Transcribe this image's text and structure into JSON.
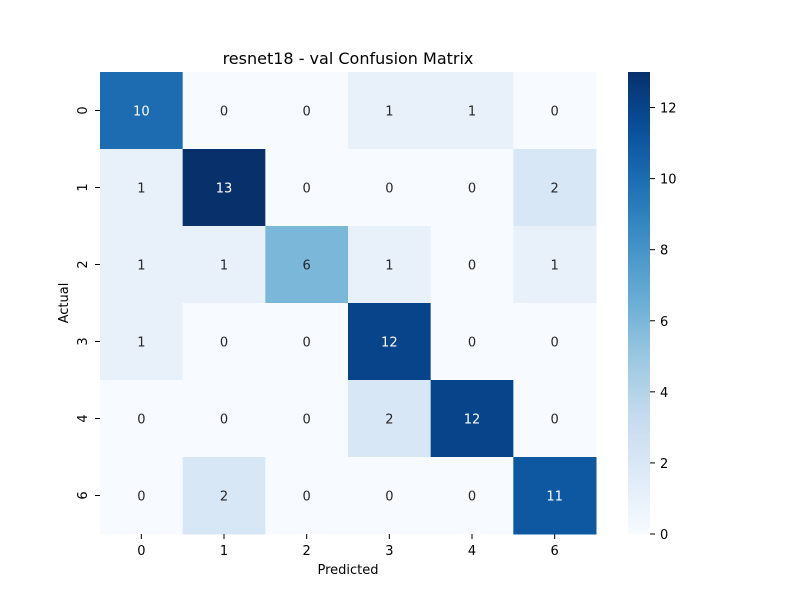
{
  "chart_data": {
    "type": "heatmap",
    "title": "resnet18 - val Confusion Matrix",
    "xlabel": "Predicted",
    "ylabel": "Actual",
    "x_categories": [
      "0",
      "1",
      "2",
      "3",
      "4",
      "6"
    ],
    "y_categories": [
      "0",
      "1",
      "2",
      "3",
      "4",
      "6"
    ],
    "values": [
      [
        10,
        0,
        0,
        1,
        1,
        0
      ],
      [
        1,
        13,
        0,
        0,
        0,
        2
      ],
      [
        1,
        1,
        6,
        1,
        0,
        1
      ],
      [
        1,
        0,
        0,
        12,
        0,
        0
      ],
      [
        0,
        0,
        0,
        2,
        12,
        0
      ],
      [
        0,
        2,
        0,
        0,
        0,
        11
      ]
    ],
    "colormap": "Blues",
    "vmin": 0,
    "vmax": 13,
    "colorbar_ticks": [
      0,
      2,
      4,
      6,
      8,
      10,
      12
    ],
    "annotations": true
  }
}
